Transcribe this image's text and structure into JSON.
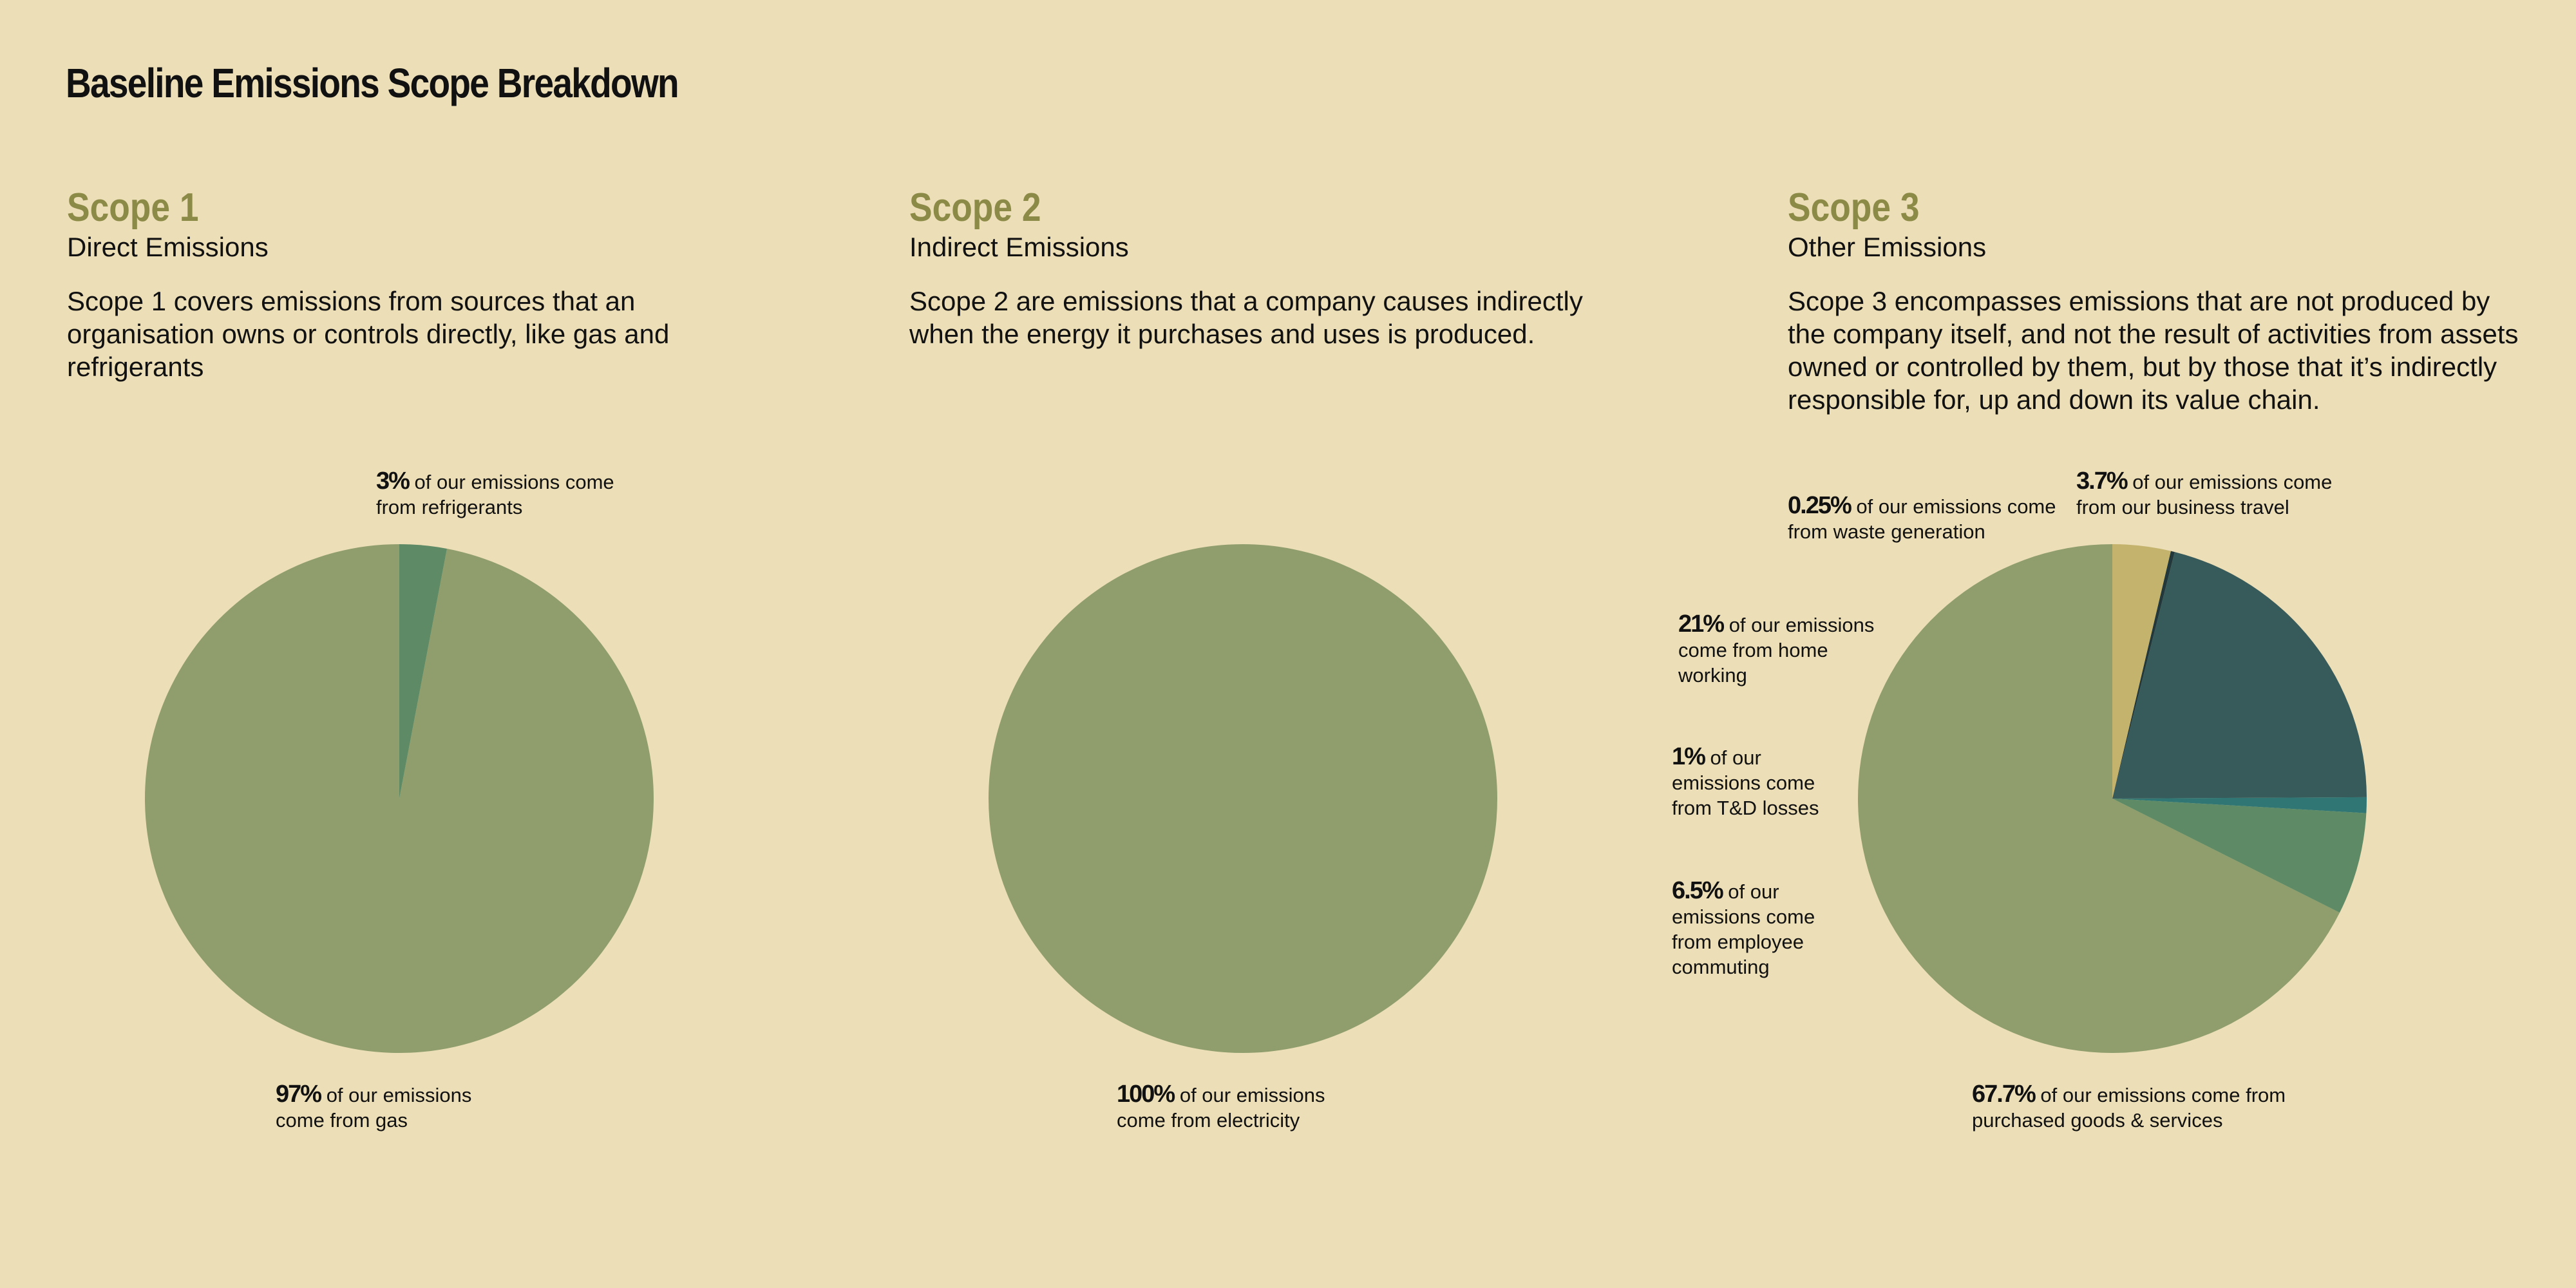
{
  "title": "Baseline Emissions Scope Breakdown",
  "colors": {
    "background": "#ecdeb6",
    "heading": "#8c8a47",
    "olive": "#8f9e6c",
    "green": "#5e8a66",
    "teal": "#2f7674",
    "slate": "#375a5a",
    "dark": "#23383a",
    "tan": "#c4b36d"
  },
  "scopes": [
    {
      "heading": "Scope 1",
      "subtitle": "Direct Emissions",
      "description": "Scope 1 covers emissions from sources that an organisation owns or controls directly, like gas and refrigerants"
    },
    {
      "heading": "Scope 2",
      "subtitle": "Indirect Emissions",
      "description": "Scope 2 are emissions that a company causes indirectly when the energy it purchases and uses is produced."
    },
    {
      "heading": "Scope 3",
      "subtitle": "Other Emissions",
      "description": "Scope 3 encompasses emissions that are not produced by the company itself, and not the result of activities from assets owned or controlled by them, but by those that it’s indirectly responsible for, up and down its value chain."
    }
  ],
  "chart_data": [
    {
      "type": "pie",
      "slices": [
        {
          "value": 97,
          "pct": "97%",
          "text": "of our emissions come from gas",
          "color": "#8f9e6c"
        },
        {
          "value": 3,
          "pct": "3%",
          "text": "of our emissions come from refrigerants",
          "color": "#5e8a66"
        }
      ]
    },
    {
      "type": "pie",
      "slices": [
        {
          "value": 100,
          "pct": "100%",
          "text": "of our emissions come from electricity",
          "color": "#8f9e6c"
        }
      ]
    },
    {
      "type": "pie",
      "slices": [
        {
          "value": 67.7,
          "pct": "67.7%",
          "text": "of our emissions come from purchased goods & services",
          "color": "#8f9e6c"
        },
        {
          "value": 6.5,
          "pct": "6.5%",
          "text": "of our emissions come from employee commuting",
          "color": "#5e8a66"
        },
        {
          "value": 1,
          "pct": "1%",
          "text": "of our emissions come from T&D losses",
          "color": "#2f7674"
        },
        {
          "value": 21,
          "pct": "21%",
          "text": "of our emissions come from home working",
          "color": "#375a5a"
        },
        {
          "value": 0.25,
          "pct": "0.25%",
          "text": "of our emissions come from waste generation",
          "color": "#23383a"
        },
        {
          "value": 3.7,
          "pct": "3.7%",
          "text": "of our emissions come from our business travel",
          "color": "#c4b36d"
        }
      ]
    }
  ]
}
